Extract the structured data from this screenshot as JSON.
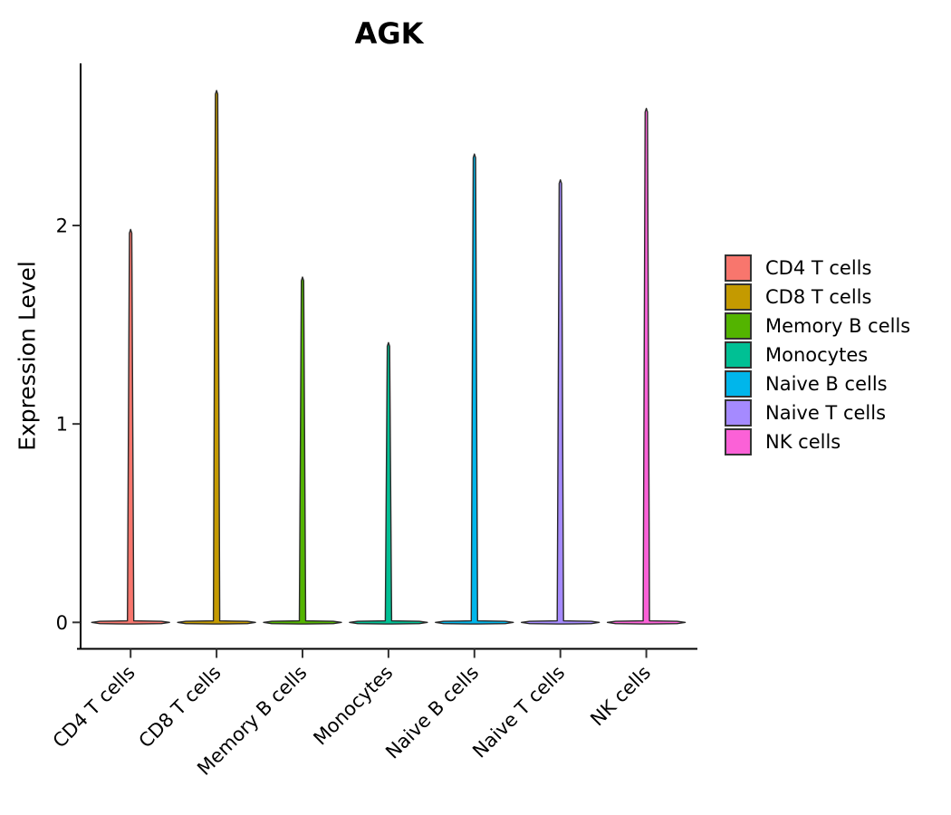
{
  "chart_data": {
    "type": "violin",
    "title": "AGK",
    "xlabel": "",
    "ylabel": "Expression Level",
    "categories": [
      "CD4 T cells",
      "CD8 T cells",
      "Memory B cells",
      "Monocytes",
      "Naive B cells",
      "Naive T cells",
      "NK cells"
    ],
    "series": [
      {
        "name": "max_expression",
        "values": [
          1.98,
          2.68,
          1.74,
          1.41,
          2.36,
          2.23,
          2.59
        ]
      }
    ],
    "baseline_value": 0,
    "density_concentrated_at": 0,
    "yticks": [
      0,
      1,
      2
    ],
    "ylim": [
      -0.13,
      2.82
    ],
    "grid": false,
    "colors": [
      "#F8766D",
      "#C49A00",
      "#53B400",
      "#00C094",
      "#00B6EB",
      "#A58AFF",
      "#FB61D7"
    ],
    "violin_outline_color": "#2b2b2b",
    "axis_color": "#000000",
    "legend": {
      "position": "right",
      "items": [
        {
          "label": "CD4 T cells",
          "color": "#F8766D"
        },
        {
          "label": "CD8 T cells",
          "color": "#C49A00"
        },
        {
          "label": "Memory B cells",
          "color": "#53B400"
        },
        {
          "label": "Monocytes",
          "color": "#00C094"
        },
        {
          "label": "Naive B cells",
          "color": "#00B6EB"
        },
        {
          "label": "Naive T cells",
          "color": "#A58AFF"
        },
        {
          "label": "NK cells",
          "color": "#FB61D7"
        }
      ]
    }
  }
}
